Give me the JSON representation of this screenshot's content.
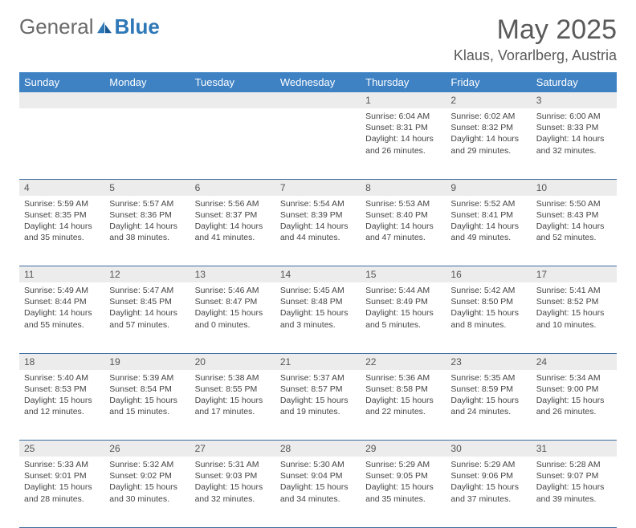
{
  "logo": {
    "text_gray": "General",
    "text_blue": "Blue"
  },
  "title": "May 2025",
  "location": "Klaus, Vorarlberg, Austria",
  "colors": {
    "header_bg": "#3e82c4",
    "header_text": "#ffffff",
    "daynum_bg": "#ececec",
    "border": "#3e6da0",
    "text": "#444444",
    "logo_gray": "#6a6a6a",
    "logo_blue": "#2e78b7"
  },
  "day_headers": [
    "Sunday",
    "Monday",
    "Tuesday",
    "Wednesday",
    "Thursday",
    "Friday",
    "Saturday"
  ],
  "weeks": [
    {
      "nums": [
        "",
        "",
        "",
        "",
        "1",
        "2",
        "3"
      ],
      "cells": [
        null,
        null,
        null,
        null,
        {
          "sunrise": "Sunrise: 6:04 AM",
          "sunset": "Sunset: 8:31 PM",
          "day1": "Daylight: 14 hours",
          "day2": "and 26 minutes."
        },
        {
          "sunrise": "Sunrise: 6:02 AM",
          "sunset": "Sunset: 8:32 PM",
          "day1": "Daylight: 14 hours",
          "day2": "and 29 minutes."
        },
        {
          "sunrise": "Sunrise: 6:00 AM",
          "sunset": "Sunset: 8:33 PM",
          "day1": "Daylight: 14 hours",
          "day2": "and 32 minutes."
        }
      ]
    },
    {
      "nums": [
        "4",
        "5",
        "6",
        "7",
        "8",
        "9",
        "10"
      ],
      "cells": [
        {
          "sunrise": "Sunrise: 5:59 AM",
          "sunset": "Sunset: 8:35 PM",
          "day1": "Daylight: 14 hours",
          "day2": "and 35 minutes."
        },
        {
          "sunrise": "Sunrise: 5:57 AM",
          "sunset": "Sunset: 8:36 PM",
          "day1": "Daylight: 14 hours",
          "day2": "and 38 minutes."
        },
        {
          "sunrise": "Sunrise: 5:56 AM",
          "sunset": "Sunset: 8:37 PM",
          "day1": "Daylight: 14 hours",
          "day2": "and 41 minutes."
        },
        {
          "sunrise": "Sunrise: 5:54 AM",
          "sunset": "Sunset: 8:39 PM",
          "day1": "Daylight: 14 hours",
          "day2": "and 44 minutes."
        },
        {
          "sunrise": "Sunrise: 5:53 AM",
          "sunset": "Sunset: 8:40 PM",
          "day1": "Daylight: 14 hours",
          "day2": "and 47 minutes."
        },
        {
          "sunrise": "Sunrise: 5:52 AM",
          "sunset": "Sunset: 8:41 PM",
          "day1": "Daylight: 14 hours",
          "day2": "and 49 minutes."
        },
        {
          "sunrise": "Sunrise: 5:50 AM",
          "sunset": "Sunset: 8:43 PM",
          "day1": "Daylight: 14 hours",
          "day2": "and 52 minutes."
        }
      ]
    },
    {
      "nums": [
        "11",
        "12",
        "13",
        "14",
        "15",
        "16",
        "17"
      ],
      "cells": [
        {
          "sunrise": "Sunrise: 5:49 AM",
          "sunset": "Sunset: 8:44 PM",
          "day1": "Daylight: 14 hours",
          "day2": "and 55 minutes."
        },
        {
          "sunrise": "Sunrise: 5:47 AM",
          "sunset": "Sunset: 8:45 PM",
          "day1": "Daylight: 14 hours",
          "day2": "and 57 minutes."
        },
        {
          "sunrise": "Sunrise: 5:46 AM",
          "sunset": "Sunset: 8:47 PM",
          "day1": "Daylight: 15 hours",
          "day2": "and 0 minutes."
        },
        {
          "sunrise": "Sunrise: 5:45 AM",
          "sunset": "Sunset: 8:48 PM",
          "day1": "Daylight: 15 hours",
          "day2": "and 3 minutes."
        },
        {
          "sunrise": "Sunrise: 5:44 AM",
          "sunset": "Sunset: 8:49 PM",
          "day1": "Daylight: 15 hours",
          "day2": "and 5 minutes."
        },
        {
          "sunrise": "Sunrise: 5:42 AM",
          "sunset": "Sunset: 8:50 PM",
          "day1": "Daylight: 15 hours",
          "day2": "and 8 minutes."
        },
        {
          "sunrise": "Sunrise: 5:41 AM",
          "sunset": "Sunset: 8:52 PM",
          "day1": "Daylight: 15 hours",
          "day2": "and 10 minutes."
        }
      ]
    },
    {
      "nums": [
        "18",
        "19",
        "20",
        "21",
        "22",
        "23",
        "24"
      ],
      "cells": [
        {
          "sunrise": "Sunrise: 5:40 AM",
          "sunset": "Sunset: 8:53 PM",
          "day1": "Daylight: 15 hours",
          "day2": "and 12 minutes."
        },
        {
          "sunrise": "Sunrise: 5:39 AM",
          "sunset": "Sunset: 8:54 PM",
          "day1": "Daylight: 15 hours",
          "day2": "and 15 minutes."
        },
        {
          "sunrise": "Sunrise: 5:38 AM",
          "sunset": "Sunset: 8:55 PM",
          "day1": "Daylight: 15 hours",
          "day2": "and 17 minutes."
        },
        {
          "sunrise": "Sunrise: 5:37 AM",
          "sunset": "Sunset: 8:57 PM",
          "day1": "Daylight: 15 hours",
          "day2": "and 19 minutes."
        },
        {
          "sunrise": "Sunrise: 5:36 AM",
          "sunset": "Sunset: 8:58 PM",
          "day1": "Daylight: 15 hours",
          "day2": "and 22 minutes."
        },
        {
          "sunrise": "Sunrise: 5:35 AM",
          "sunset": "Sunset: 8:59 PM",
          "day1": "Daylight: 15 hours",
          "day2": "and 24 minutes."
        },
        {
          "sunrise": "Sunrise: 5:34 AM",
          "sunset": "Sunset: 9:00 PM",
          "day1": "Daylight: 15 hours",
          "day2": "and 26 minutes."
        }
      ]
    },
    {
      "nums": [
        "25",
        "26",
        "27",
        "28",
        "29",
        "30",
        "31"
      ],
      "cells": [
        {
          "sunrise": "Sunrise: 5:33 AM",
          "sunset": "Sunset: 9:01 PM",
          "day1": "Daylight: 15 hours",
          "day2": "and 28 minutes."
        },
        {
          "sunrise": "Sunrise: 5:32 AM",
          "sunset": "Sunset: 9:02 PM",
          "day1": "Daylight: 15 hours",
          "day2": "and 30 minutes."
        },
        {
          "sunrise": "Sunrise: 5:31 AM",
          "sunset": "Sunset: 9:03 PM",
          "day1": "Daylight: 15 hours",
          "day2": "and 32 minutes."
        },
        {
          "sunrise": "Sunrise: 5:30 AM",
          "sunset": "Sunset: 9:04 PM",
          "day1": "Daylight: 15 hours",
          "day2": "and 34 minutes."
        },
        {
          "sunrise": "Sunrise: 5:29 AM",
          "sunset": "Sunset: 9:05 PM",
          "day1": "Daylight: 15 hours",
          "day2": "and 35 minutes."
        },
        {
          "sunrise": "Sunrise: 5:29 AM",
          "sunset": "Sunset: 9:06 PM",
          "day1": "Daylight: 15 hours",
          "day2": "and 37 minutes."
        },
        {
          "sunrise": "Sunrise: 5:28 AM",
          "sunset": "Sunset: 9:07 PM",
          "day1": "Daylight: 15 hours",
          "day2": "and 39 minutes."
        }
      ]
    }
  ]
}
